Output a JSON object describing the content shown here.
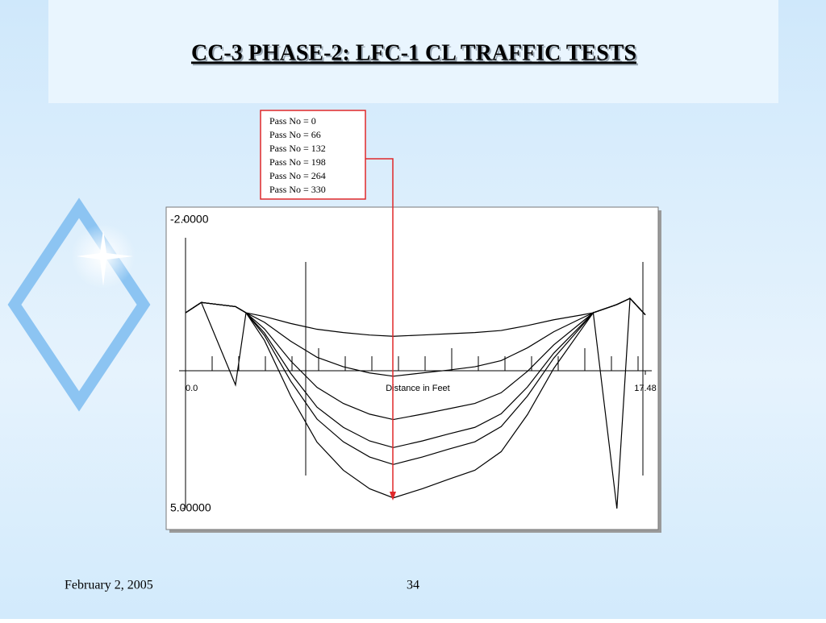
{
  "slide": {
    "title": "CC-3 PHASE-2: LFC-1 CL TRAFFIC TESTS",
    "date": "February 2, 2005",
    "page": "34"
  },
  "chart_data": {
    "type": "line",
    "xlabel": "Distance in Feet",
    "x": [
      0,
      0.6,
      1.9,
      2.3,
      3,
      4,
      5,
      6,
      7,
      7.9,
      9,
      10,
      11,
      12,
      13,
      14,
      15,
      15.5,
      16.4,
      16.9,
      17.48
    ],
    "xlim": [
      0,
      17.48
    ],
    "xticks": [
      {
        "value": 0,
        "label": "0.0"
      },
      17.48
    ],
    "ylim": [
      -2,
      5
    ],
    "y_inverted": true,
    "yticks": [
      {
        "value": -2,
        "label": "-2.0000"
      },
      {
        "value": 5,
        "label": "5.00000"
      }
    ],
    "series": [
      {
        "name": "Pass No = 0",
        "color": "#000000",
        "values": [
          0.25,
          0.0,
          2.0,
          0.25,
          0.34,
          0.51,
          0.65,
          0.73,
          0.79,
          0.82,
          0.79,
          0.76,
          0.73,
          0.68,
          0.56,
          0.42,
          0.31,
          0.25,
          0.05,
          -0.1,
          0.3
        ]
      },
      {
        "name": "Pass No = 66",
        "color": "#000000",
        "values": [
          0.25,
          0.0,
          0.1,
          0.25,
          0.48,
          0.94,
          1.33,
          1.56,
          1.71,
          1.79,
          1.71,
          1.64,
          1.56,
          1.41,
          1.1,
          0.71,
          0.4,
          0.25,
          0.05,
          -0.1,
          0.3
        ]
      },
      {
        "name": "Pass No = 132",
        "color": "#000000",
        "values": [
          0.25,
          0.0,
          0.1,
          0.25,
          0.64,
          1.42,
          2.06,
          2.45,
          2.71,
          2.84,
          2.71,
          2.58,
          2.45,
          2.19,
          1.67,
          1.03,
          0.51,
          0.25,
          0.05,
          -0.1,
          0.3
        ]
      },
      {
        "name": "Pass No = 198",
        "color": "#000000",
        "values": [
          0.25,
          0.0,
          0.1,
          0.25,
          0.74,
          1.72,
          2.54,
          3.03,
          3.36,
          3.52,
          3.36,
          3.19,
          3.03,
          2.7,
          2.05,
          1.23,
          0.58,
          0.25,
          0.05,
          -0.1,
          0.3
        ]
      },
      {
        "name": "Pass No = 264",
        "color": "#000000",
        "values": [
          0.25,
          0.0,
          0.1,
          0.25,
          0.8,
          1.91,
          2.83,
          3.38,
          3.75,
          3.93,
          3.75,
          3.56,
          3.38,
          3.01,
          2.27,
          1.35,
          0.62,
          0.25,
          0.05,
          -0.1,
          0.3
        ]
      },
      {
        "name": "Pass No = 330",
        "color": "#000000",
        "values": [
          0.25,
          0.0,
          0.1,
          0.25,
          0.92,
          2.27,
          3.39,
          4.07,
          4.52,
          4.74,
          4.52,
          4.29,
          4.07,
          3.62,
          2.72,
          1.6,
          0.7,
          0.25,
          5.0,
          -0.1,
          0.3
        ]
      }
    ],
    "annotation_color": "#e0282a"
  }
}
